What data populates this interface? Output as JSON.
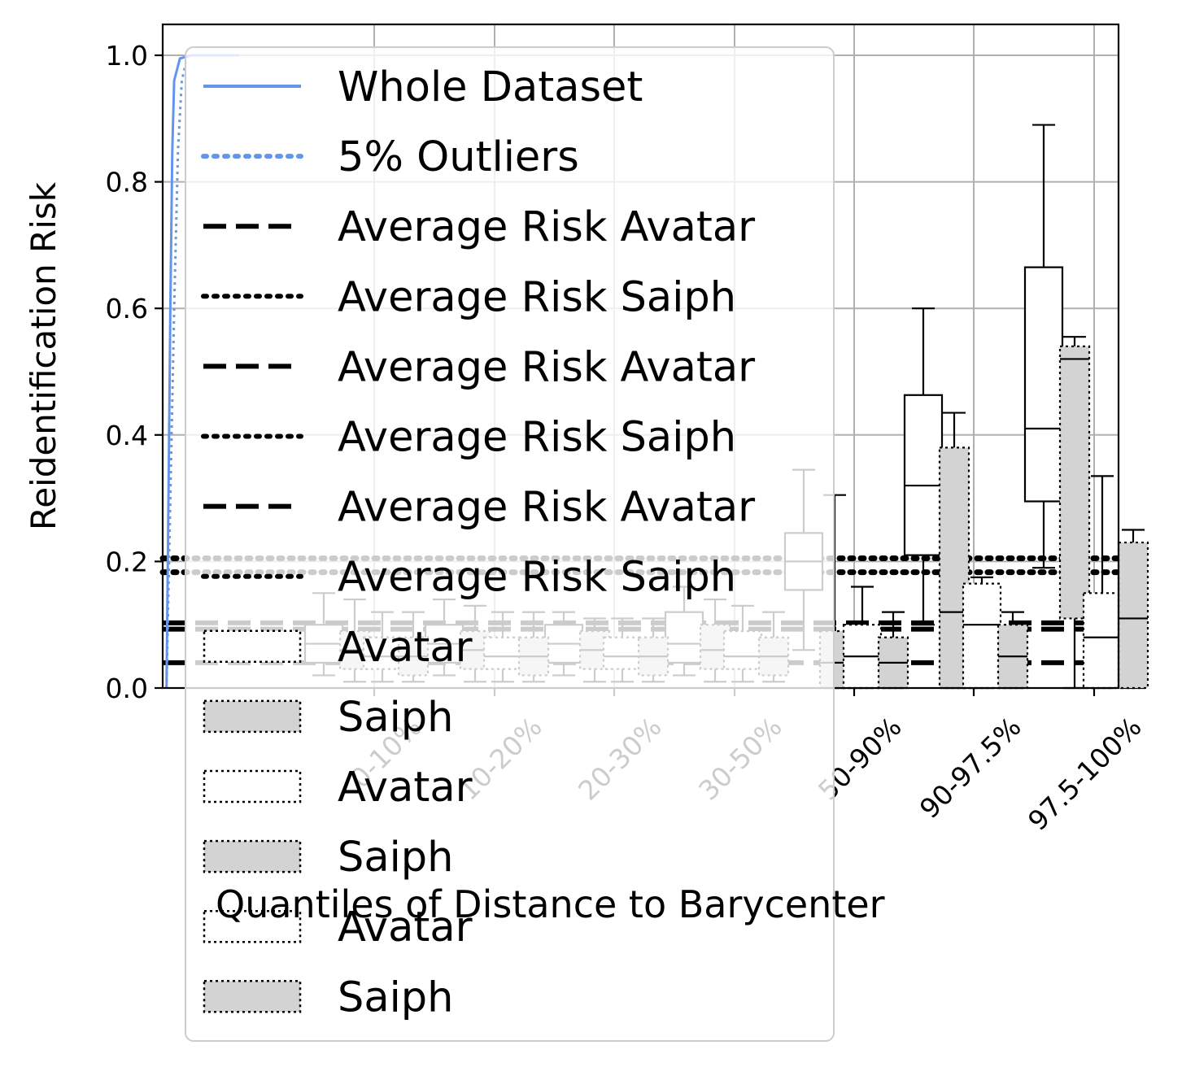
{
  "chart_data": {
    "type": "box",
    "xlabel": "Quantiles of Distance to Barycenter",
    "ylabel": "Reidentification Risk",
    "categories": [
      "0-10%",
      "10-20%",
      "20-30%",
      "30-50%",
      "50-90%",
      "90-97.5%",
      "97.5-100%"
    ],
    "yticks": [
      "0.0",
      "0.2",
      "0.4",
      "0.6",
      "0.8",
      "1.0"
    ],
    "ylim": [
      0,
      1.05
    ],
    "grid": true,
    "legend_placement": "upper-left overlapping",
    "legend": [
      {
        "label": "Whole Dataset",
        "kind": "line",
        "style": "solid",
        "color": "#6495ed"
      },
      {
        "label": "5% Outliers",
        "kind": "line",
        "style": "dotted",
        "color": "#6495ed"
      },
      {
        "label": "Average Risk Avatar",
        "kind": "line",
        "style": "dashed",
        "color": "#000000"
      },
      {
        "label": "Average Risk Saiph",
        "kind": "line",
        "style": "dotted",
        "color": "#000000"
      },
      {
        "label": "Average Risk Avatar",
        "kind": "line",
        "style": "dashed",
        "color": "#000000"
      },
      {
        "label": "Average Risk Saiph",
        "kind": "line",
        "style": "dotted",
        "color": "#000000"
      },
      {
        "label": "Average Risk Avatar",
        "kind": "line",
        "style": "dashed",
        "color": "#000000"
      },
      {
        "label": "Average Risk Saiph",
        "kind": "line",
        "style": "dotted",
        "color": "#000000"
      },
      {
        "label": "Avatar",
        "kind": "patch",
        "fill": "#ffffff"
      },
      {
        "label": "Saiph",
        "kind": "patch",
        "fill": "#d3d3d3"
      },
      {
        "label": "Avatar",
        "kind": "patch",
        "fill": "#ffffff"
      },
      {
        "label": "Saiph",
        "kind": "patch",
        "fill": "#d3d3d3"
      },
      {
        "label": "Avatar",
        "kind": "patch",
        "fill": "#ffffff"
      },
      {
        "label": "Saiph",
        "kind": "patch",
        "fill": "#d3d3d3"
      }
    ],
    "reference_lines": [
      {
        "name": "Average Risk Saiph",
        "style": "dotted",
        "y": 0.205
      },
      {
        "name": "Average Risk Saiph",
        "style": "dotted",
        "y": 0.183
      },
      {
        "name": "Average Risk Avatar",
        "style": "dashed",
        "y": 0.103
      },
      {
        "name": "Average Risk Avatar",
        "style": "dashed",
        "y": 0.093
      },
      {
        "name": "Average Risk Avatar",
        "style": "dashed",
        "y": 0.04
      }
    ],
    "whole_dataset_cdf": [
      [
        0.004,
        0.0
      ],
      [
        0.006,
        0.3
      ],
      [
        0.008,
        0.6
      ],
      [
        0.01,
        0.85
      ],
      [
        0.012,
        0.96
      ],
      [
        0.018,
        0.995
      ],
      [
        0.03,
        1.0
      ],
      [
        0.08,
        1.0
      ]
    ],
    "outliers_cdf": [
      [
        0.004,
        0.0
      ],
      [
        0.008,
        0.3
      ],
      [
        0.012,
        0.6
      ],
      [
        0.016,
        0.85
      ],
      [
        0.02,
        0.96
      ],
      [
        0.026,
        1.0
      ],
      [
        0.05,
        1.0
      ]
    ],
    "series": [
      {
        "name": "Avatar",
        "boxes": [
          {
            "q1": 0.04,
            "median": 0.07,
            "q3": 0.1,
            "whisker_low": 0.02,
            "whisker_high": 0.15
          },
          {
            "q1": 0.04,
            "median": 0.07,
            "q3": 0.1,
            "whisker_low": 0.02,
            "whisker_high": 0.14
          },
          {
            "q1": 0.04,
            "median": 0.07,
            "q3": 0.1,
            "whisker_low": 0.02,
            "whisker_high": 0.12
          },
          {
            "q1": 0.04,
            "median": 0.07,
            "q3": 0.12,
            "whisker_low": 0.02,
            "whisker_high": 0.16
          },
          {
            "q1": 0.155,
            "median": 0.2,
            "q3": 0.245,
            "whisker_low": 0.06,
            "whisker_high": 0.345
          },
          {
            "q1": 0.21,
            "median": 0.32,
            "q3": 0.463,
            "whisker_low": 0.1,
            "whisker_high": 0.6
          },
          {
            "q1": 0.295,
            "median": 0.41,
            "q3": 0.665,
            "whisker_low": 0.19,
            "whisker_high": 0.89
          }
        ]
      },
      {
        "name": "Saiph",
        "boxes": [
          {
            "q1": 0.03,
            "median": 0.06,
            "q3": 0.09,
            "whisker_low": 0.01,
            "whisker_high": 0.14
          },
          {
            "q1": 0.03,
            "median": 0.06,
            "q3": 0.09,
            "whisker_low": 0.01,
            "whisker_high": 0.13
          },
          {
            "q1": 0.03,
            "median": 0.06,
            "q3": 0.09,
            "whisker_low": 0.01,
            "whisker_high": 0.11
          },
          {
            "q1": 0.03,
            "median": 0.06,
            "q3": 0.1,
            "whisker_low": 0.01,
            "whisker_high": 0.14
          },
          {
            "q1": 0.0,
            "median": 0.04,
            "q3": 0.09,
            "whisker_low": 0.0,
            "whisker_high": 0.305
          },
          {
            "q1": 0.0,
            "median": 0.12,
            "q3": 0.38,
            "whisker_low": 0.0,
            "whisker_high": 0.435
          },
          {
            "q1": 0.11,
            "median": 0.52,
            "q3": 0.54,
            "whisker_low": 0.0,
            "whisker_high": 0.555
          }
        ]
      },
      {
        "name": "Avatar",
        "boxes": [
          {
            "q1": 0.03,
            "median": 0.05,
            "q3": 0.08,
            "whisker_low": 0.01,
            "whisker_high": 0.12
          },
          {
            "q1": 0.03,
            "median": 0.05,
            "q3": 0.08,
            "whisker_low": 0.01,
            "whisker_high": 0.12
          },
          {
            "q1": 0.03,
            "median": 0.05,
            "q3": 0.08,
            "whisker_low": 0.01,
            "whisker_high": 0.11
          },
          {
            "q1": 0.03,
            "median": 0.05,
            "q3": 0.09,
            "whisker_low": 0.01,
            "whisker_high": 0.13
          },
          {
            "q1": 0.0,
            "median": 0.05,
            "q3": 0.1,
            "whisker_low": 0.0,
            "whisker_high": 0.16
          },
          {
            "q1": 0.0,
            "median": 0.1,
            "q3": 0.165,
            "whisker_low": 0.0,
            "whisker_high": 0.175
          },
          {
            "q1": 0.0,
            "median": 0.08,
            "q3": 0.15,
            "whisker_low": 0.0,
            "whisker_high": 0.335
          }
        ]
      },
      {
        "name": "Saiph",
        "boxes": [
          {
            "q1": 0.02,
            "median": 0.05,
            "q3": 0.08,
            "whisker_low": 0.01,
            "whisker_high": 0.12
          },
          {
            "q1": 0.02,
            "median": 0.05,
            "q3": 0.08,
            "whisker_low": 0.01,
            "whisker_high": 0.12
          },
          {
            "q1": 0.02,
            "median": 0.05,
            "q3": 0.08,
            "whisker_low": 0.01,
            "whisker_high": 0.11
          },
          {
            "q1": 0.02,
            "median": 0.05,
            "q3": 0.08,
            "whisker_low": 0.01,
            "whisker_high": 0.12
          },
          {
            "q1": 0.0,
            "median": 0.04,
            "q3": 0.08,
            "whisker_low": 0.0,
            "whisker_high": 0.12
          },
          {
            "q1": 0.0,
            "median": 0.05,
            "q3": 0.1,
            "whisker_low": 0.0,
            "whisker_high": 0.12
          },
          {
            "q1": 0.0,
            "median": 0.11,
            "q3": 0.23,
            "whisker_low": 0.0,
            "whisker_high": 0.25
          }
        ]
      }
    ]
  }
}
